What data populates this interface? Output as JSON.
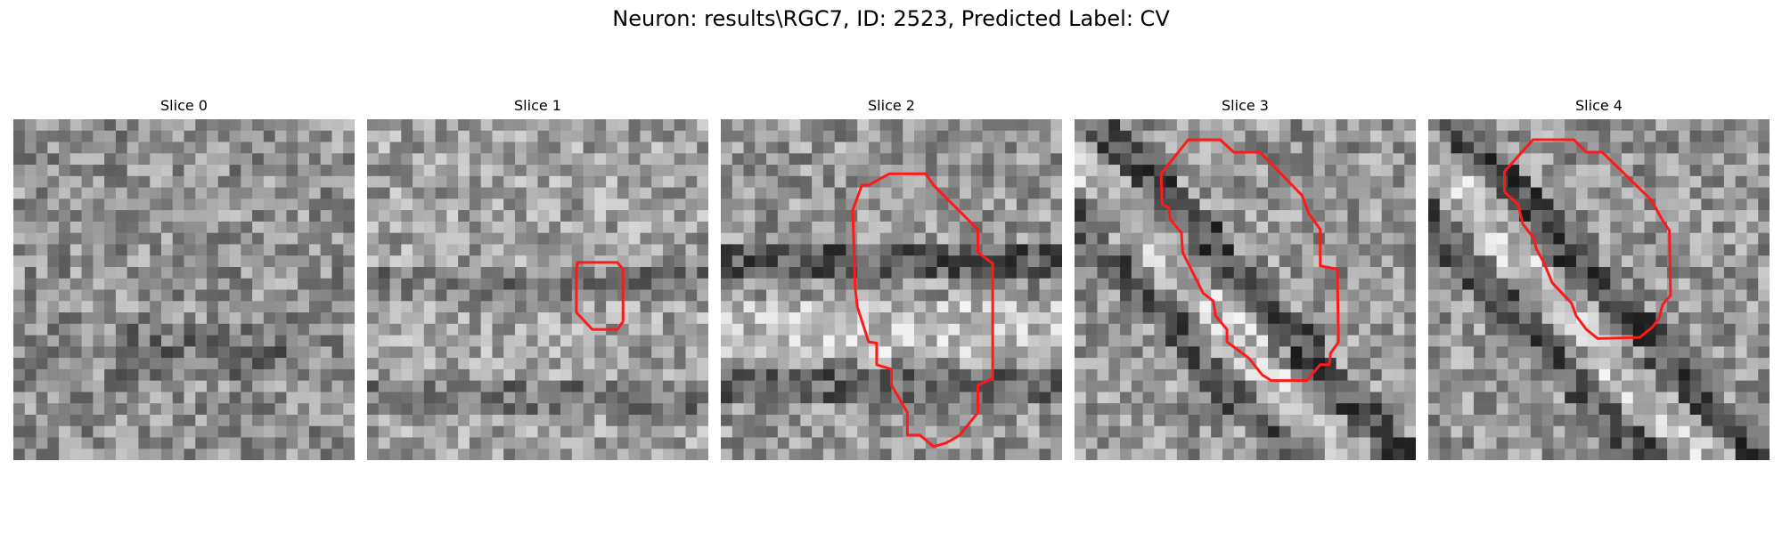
{
  "title": "Neuron: results\\RGC7, ID: 2523, Predicted Label: CV",
  "panels": [
    {
      "label": "Slice 0",
      "has_contour": false
    },
    {
      "label": "Slice 1",
      "has_contour": true
    },
    {
      "label": "Slice 2",
      "has_contour": true
    },
    {
      "label": "Slice 3",
      "has_contour": true
    },
    {
      "label": "Slice 4",
      "has_contour": true
    }
  ],
  "colors": {
    "contour": "#ff1a1a",
    "colormap": "grayscale"
  }
}
